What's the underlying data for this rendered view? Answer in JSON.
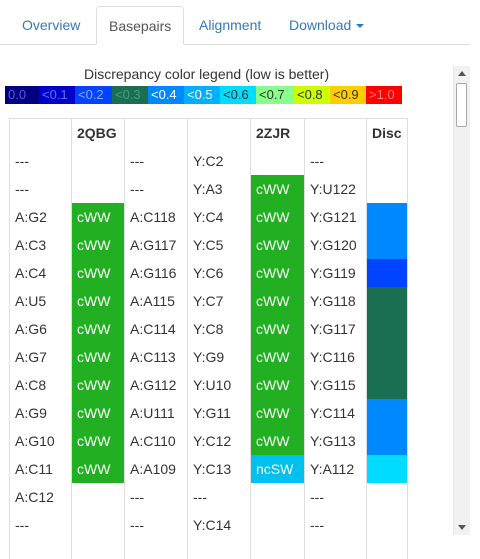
{
  "tabs": [
    {
      "label": "Overview",
      "active": false
    },
    {
      "label": "Basepairs",
      "active": true
    },
    {
      "label": "Alignment",
      "active": false
    },
    {
      "label": "Download",
      "active": false,
      "dropdown": true
    }
  ],
  "legend": {
    "title": "Discrepancy color legend (low is better)",
    "items": [
      {
        "label": "0.0",
        "color": "#000080",
        "text_color": "#4f5fd8"
      },
      {
        "label": "<0.1",
        "color": "#0000c8",
        "text_color": "#5f6fff"
      },
      {
        "label": "<0.2",
        "color": "#0044ff",
        "text_color": "#90a8ff"
      },
      {
        "label": "<0.3",
        "color": "#1a6e52",
        "text_color": "#4d9a7e"
      },
      {
        "label": "<0.4",
        "color": "#0088ff",
        "text_color": "#ffffff"
      },
      {
        "label": "<0.5",
        "color": "#00b0ff",
        "text_color": "#ffffff"
      },
      {
        "label": "<0.6",
        "color": "#00dcff",
        "text_color": "#333333"
      },
      {
        "label": "<0.7",
        "color": "#88ff88",
        "text_color": "#333333"
      },
      {
        "label": "<0.8",
        "color": "#ccff00",
        "text_color": "#333333"
      },
      {
        "label": "<0.9",
        "color": "#ffcc00",
        "text_color": "#333333"
      },
      {
        "label": ">1.0",
        "color": "#ff0000",
        "text_color": "#ff8080"
      }
    ]
  },
  "table": {
    "headers": [
      "",
      "2QBG",
      "",
      "",
      "2ZJR",
      "",
      "Disc"
    ],
    "pair_text_color": "#ffffff",
    "rows": [
      {
        "c1": "---",
        "c2": "",
        "c3": "---",
        "c4": "Y:C2",
        "c5": "",
        "c6": "---",
        "disc": ""
      },
      {
        "c1": "---",
        "c2": "",
        "c3": "---",
        "c4": "Y:A3",
        "c5": "cWW",
        "c6": "Y:U122",
        "disc": ""
      },
      {
        "c1": "A:G2",
        "c2": "cWW",
        "c3": "A:C118",
        "c4": "Y:C4",
        "c5": "cWW",
        "c6": "Y:G121",
        "disc": "#0088ff"
      },
      {
        "c1": "A:C3",
        "c2": "cWW",
        "c3": "A:G117",
        "c4": "Y:C5",
        "c5": "cWW",
        "c6": "Y:G120",
        "disc": "#0088ff"
      },
      {
        "c1": "A:C4",
        "c2": "cWW",
        "c3": "A:G116",
        "c4": "Y:C6",
        "c5": "cWW",
        "c6": "Y:G119",
        "disc": "#0044ff"
      },
      {
        "c1": "A:U5",
        "c2": "cWW",
        "c3": "A:A115",
        "c4": "Y:C7",
        "c5": "cWW",
        "c6": "Y:G118",
        "disc": "#1a6e52"
      },
      {
        "c1": "A:G6",
        "c2": "cWW",
        "c3": "A:C114",
        "c4": "Y:C8",
        "c5": "cWW",
        "c6": "Y:G117",
        "disc": "#1a6e52"
      },
      {
        "c1": "A:G7",
        "c2": "cWW",
        "c3": "A:C113",
        "c4": "Y:G9",
        "c5": "cWW",
        "c6": "Y:C116",
        "disc": "#1a6e52"
      },
      {
        "c1": "A:C8",
        "c2": "cWW",
        "c3": "A:G112",
        "c4": "Y:U10",
        "c5": "cWW",
        "c6": "Y:G115",
        "disc": "#1a6e52"
      },
      {
        "c1": "A:G9",
        "c2": "cWW",
        "c3": "A:U111",
        "c4": "Y:G11",
        "c5": "cWW",
        "c6": "Y:C114",
        "disc": "#0088ff"
      },
      {
        "c1": "A:G10",
        "c2": "cWW",
        "c3": "A:C110",
        "c4": "Y:C12",
        "c5": "cWW",
        "c6": "Y:G113",
        "disc": "#0088ff"
      },
      {
        "c1": "A:C11",
        "c2": "cWW",
        "c3": "A:A109",
        "c4": "Y:C13",
        "c5": "ncSW",
        "c6": "Y:A112",
        "disc": "#00dcff"
      },
      {
        "c1": "A:C12",
        "c2": "",
        "c3": "---",
        "c4": "---",
        "c5": "",
        "c6": "---",
        "disc": ""
      },
      {
        "c1": "---",
        "c2": "",
        "c3": "---",
        "c4": "Y:C14",
        "c5": "",
        "c6": "---",
        "disc": ""
      }
    ],
    "colors": {
      "cWW": "#22b022",
      "ncSW": "#00c0ee"
    }
  }
}
